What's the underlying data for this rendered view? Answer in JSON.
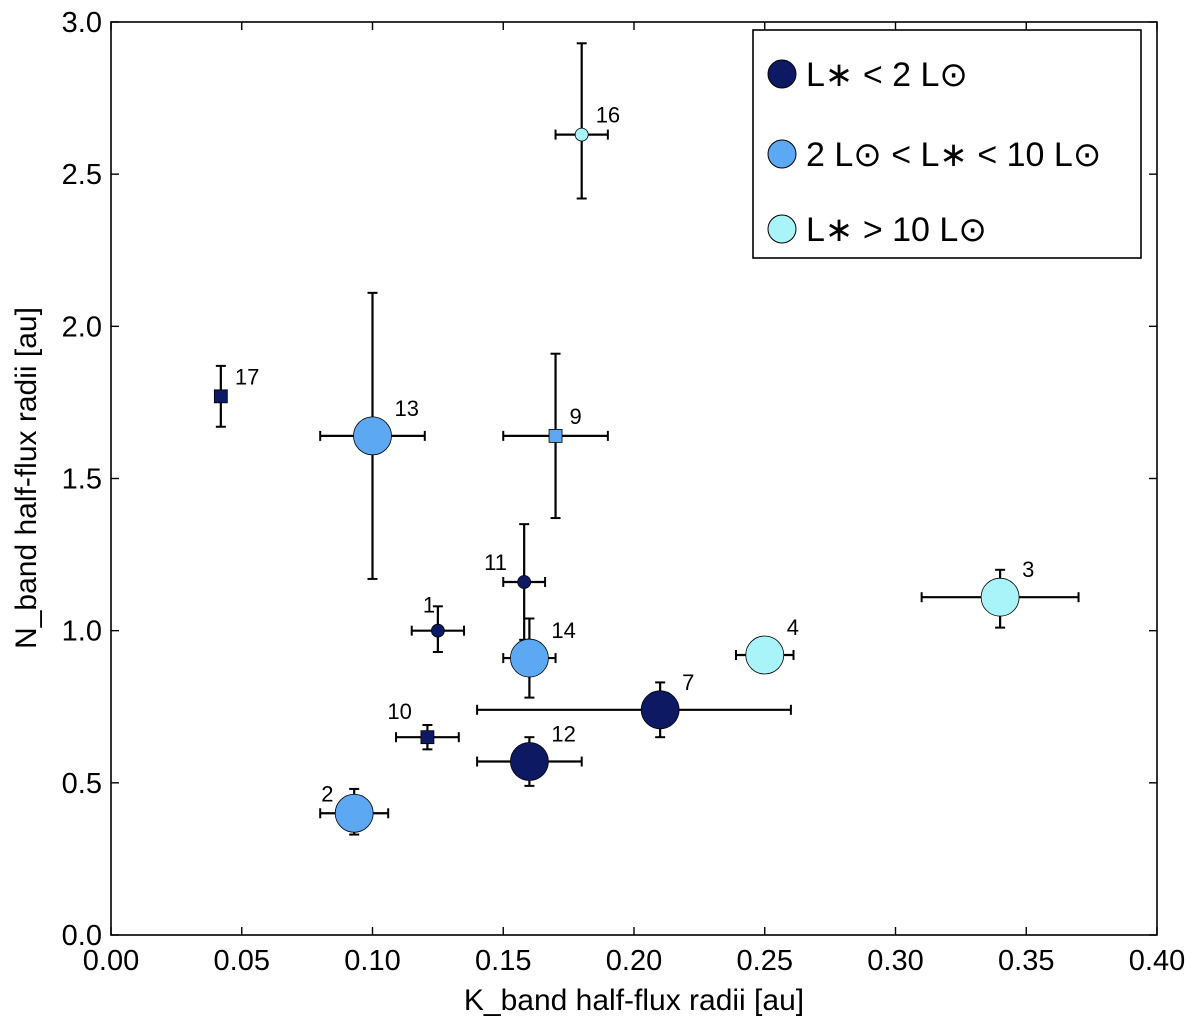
{
  "chart_data": {
    "type": "scatter",
    "title": "",
    "xlabel": "K_band half-flux radii [au]",
    "ylabel": "N_band half-flux radii [au]",
    "xlim": [
      0.0,
      0.4
    ],
    "ylim": [
      0.0,
      3.0
    ],
    "xticks": [
      0.0,
      0.05,
      0.1,
      0.15,
      0.2,
      0.25,
      0.3,
      0.35,
      0.4
    ],
    "xtick_labels": [
      "0.00",
      "0.05",
      "0.10",
      "0.15",
      "0.20",
      "0.25",
      "0.30",
      "0.35",
      "0.40"
    ],
    "yticks": [
      0.0,
      0.5,
      1.0,
      1.5,
      2.0,
      2.5,
      3.0
    ],
    "ytick_labels": [
      "0.0",
      "0.5",
      "1.0",
      "1.5",
      "2.0",
      "2.5",
      "3.0"
    ],
    "grid": false,
    "legend_position": "top-right",
    "colors": {
      "low": "#0d1a63",
      "mid": "#5ca8f2",
      "high": "#a8f4f8",
      "axis": "#000000",
      "errorbar": "#000000"
    },
    "series": [
      {
        "name": "low",
        "legend": "L∗ < 2 L⊙",
        "color": "#0d1a63"
      },
      {
        "name": "mid",
        "legend": "2 L⊙ < L∗ < 10 L⊙",
        "color": "#5ca8f2"
      },
      {
        "name": "high",
        "legend": "L∗ > 10 L⊙",
        "color": "#a8f4f8"
      }
    ],
    "points": [
      {
        "label": "1",
        "x": 0.125,
        "y": 1.0,
        "xerr": [
          0.01,
          0.01
        ],
        "yerr": [
          0.07,
          0.08
        ],
        "group": "low",
        "marker": "circle",
        "size": "small"
      },
      {
        "label": "2",
        "x": 0.093,
        "y": 0.4,
        "xerr": [
          0.013,
          0.013
        ],
        "yerr": [
          0.07,
          0.08
        ],
        "group": "mid",
        "marker": "circle",
        "size": "large"
      },
      {
        "label": "3",
        "x": 0.34,
        "y": 1.11,
        "xerr": [
          0.03,
          0.03
        ],
        "yerr": [
          0.1,
          0.09
        ],
        "group": "high",
        "marker": "circle",
        "size": "large"
      },
      {
        "label": "4",
        "x": 0.25,
        "y": 0.92,
        "xerr": [
          0.011,
          0.011
        ],
        "yerr": [
          0.04,
          0.04
        ],
        "group": "high",
        "marker": "circle",
        "size": "large"
      },
      {
        "label": "7",
        "x": 0.21,
        "y": 0.74,
        "xerr": [
          0.07,
          0.05
        ],
        "yerr": [
          0.09,
          0.09
        ],
        "group": "low",
        "marker": "circle",
        "size": "large"
      },
      {
        "label": "9",
        "x": 0.17,
        "y": 1.64,
        "xerr": [
          0.02,
          0.02
        ],
        "yerr": [
          0.27,
          0.27
        ],
        "group": "mid",
        "marker": "square",
        "size": "small"
      },
      {
        "label": "10",
        "x": 0.121,
        "y": 0.65,
        "xerr": [
          0.012,
          0.012
        ],
        "yerr": [
          0.04,
          0.04
        ],
        "group": "low",
        "marker": "square",
        "size": "small"
      },
      {
        "label": "11",
        "x": 0.158,
        "y": 1.16,
        "xerr": [
          0.008,
          0.008
        ],
        "yerr": [
          0.19,
          0.19
        ],
        "group": "low",
        "marker": "circle",
        "size": "small"
      },
      {
        "label": "12",
        "x": 0.16,
        "y": 0.57,
        "xerr": [
          0.02,
          0.02
        ],
        "yerr": [
          0.08,
          0.08
        ],
        "group": "low",
        "marker": "circle",
        "size": "large"
      },
      {
        "label": "13",
        "x": 0.1,
        "y": 1.64,
        "xerr": [
          0.02,
          0.02
        ],
        "yerr": [
          0.47,
          0.47
        ],
        "group": "mid",
        "marker": "circle",
        "size": "large"
      },
      {
        "label": "14",
        "x": 0.16,
        "y": 0.91,
        "xerr": [
          0.01,
          0.01
        ],
        "yerr": [
          0.13,
          0.13
        ],
        "group": "mid",
        "marker": "circle",
        "size": "large"
      },
      {
        "label": "16",
        "x": 0.18,
        "y": 2.63,
        "xerr": [
          0.01,
          0.01
        ],
        "yerr": [
          0.21,
          0.3
        ],
        "group": "high",
        "marker": "circle",
        "size": "small"
      },
      {
        "label": "17",
        "x": 0.042,
        "y": 1.77,
        "xerr": [
          0.002,
          0.002
        ],
        "yerr": [
          0.1,
          0.1
        ],
        "group": "low",
        "marker": "square",
        "size": "small"
      }
    ]
  }
}
